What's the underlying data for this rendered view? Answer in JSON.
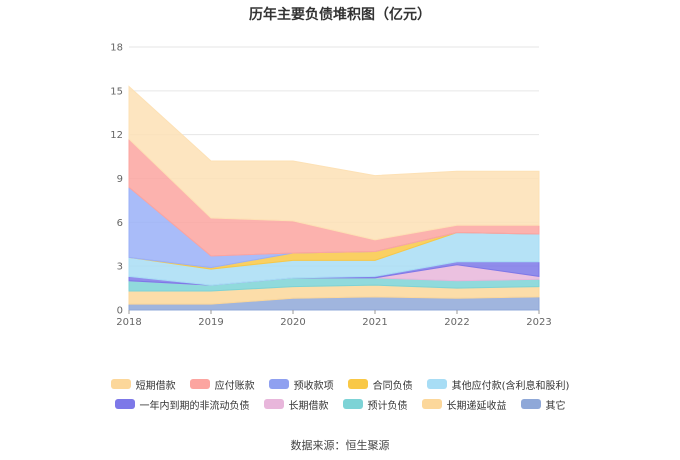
{
  "chart_data": {
    "type": "area",
    "stacked": true,
    "title": "历年主要负债堆积图（亿元）",
    "source": "数据来源：恒生聚源",
    "x": [
      "2018",
      "2019",
      "2020",
      "2021",
      "2022",
      "2023"
    ],
    "ylim": [
      0,
      18
    ],
    "yticks": [
      "0",
      "3",
      "6",
      "9",
      "12",
      "15",
      "18"
    ],
    "grid": true,
    "legend_position": "bottom",
    "series": [
      {
        "name": "其它",
        "color": "#8fa8d8",
        "values": [
          0.4,
          0.4,
          0.8,
          0.9,
          0.8,
          0.9
        ]
      },
      {
        "name": "长期递延收益",
        "color": "#fcd79a",
        "values": [
          0.9,
          0.9,
          0.8,
          0.8,
          0.7,
          0.7
        ]
      },
      {
        "name": "预计负债",
        "color": "#7dd3d6",
        "values": [
          0.7,
          0.4,
          0.6,
          0.5,
          0.5,
          0.5
        ]
      },
      {
        "name": "长期借款",
        "color": "#e8b6db",
        "values": [
          0.0,
          0.0,
          0.0,
          0.0,
          1.1,
          0.2
        ]
      },
      {
        "name": "一年内到期的非流动负债",
        "color": "#7d78e8",
        "values": [
          0.3,
          0.0,
          0.0,
          0.1,
          0.2,
          1.0
        ]
      },
      {
        "name": "其他应付款(含利息和股利)",
        "color": "#a8ddf5",
        "values": [
          1.3,
          1.1,
          1.2,
          1.1,
          2.0,
          1.9
        ]
      },
      {
        "name": "合同负债",
        "color": "#f9c846",
        "values": [
          0.0,
          0.1,
          0.5,
          0.6,
          0.0,
          0.0
        ]
      },
      {
        "name": "预收款项",
        "color": "#9ab0f8",
        "values": [
          4.8,
          0.8,
          0.0,
          0.0,
          0.0,
          0.0
        ]
      },
      {
        "name": "应付账款",
        "color": "#fca5a0",
        "values": [
          3.3,
          2.6,
          2.2,
          0.8,
          0.5,
          0.6
        ]
      },
      {
        "name": "短期借款",
        "color": "#fde1b5",
        "values": [
          3.6,
          3.9,
          4.1,
          4.4,
          3.7,
          3.7
        ]
      }
    ]
  },
  "legend": {
    "row1": [
      {
        "label": "短期借款",
        "color": "#fcd79a"
      },
      {
        "label": "应付账款",
        "color": "#fca5a0"
      },
      {
        "label": "预收款项",
        "color": "#8fa0f0"
      },
      {
        "label": "合同负债",
        "color": "#f9c846"
      },
      {
        "label": "其他应付款(含利息和股利)",
        "color": "#a8ddf5"
      }
    ],
    "row2": [
      {
        "label": "一年内到期的非流动负债",
        "color": "#7d78e8"
      },
      {
        "label": "长期借款",
        "color": "#e8b6db"
      },
      {
        "label": "预计负债",
        "color": "#7dd3d6"
      },
      {
        "label": "长期递延收益",
        "color": "#fcd79a"
      },
      {
        "label": "其它",
        "color": "#8fa8d8"
      }
    ]
  }
}
